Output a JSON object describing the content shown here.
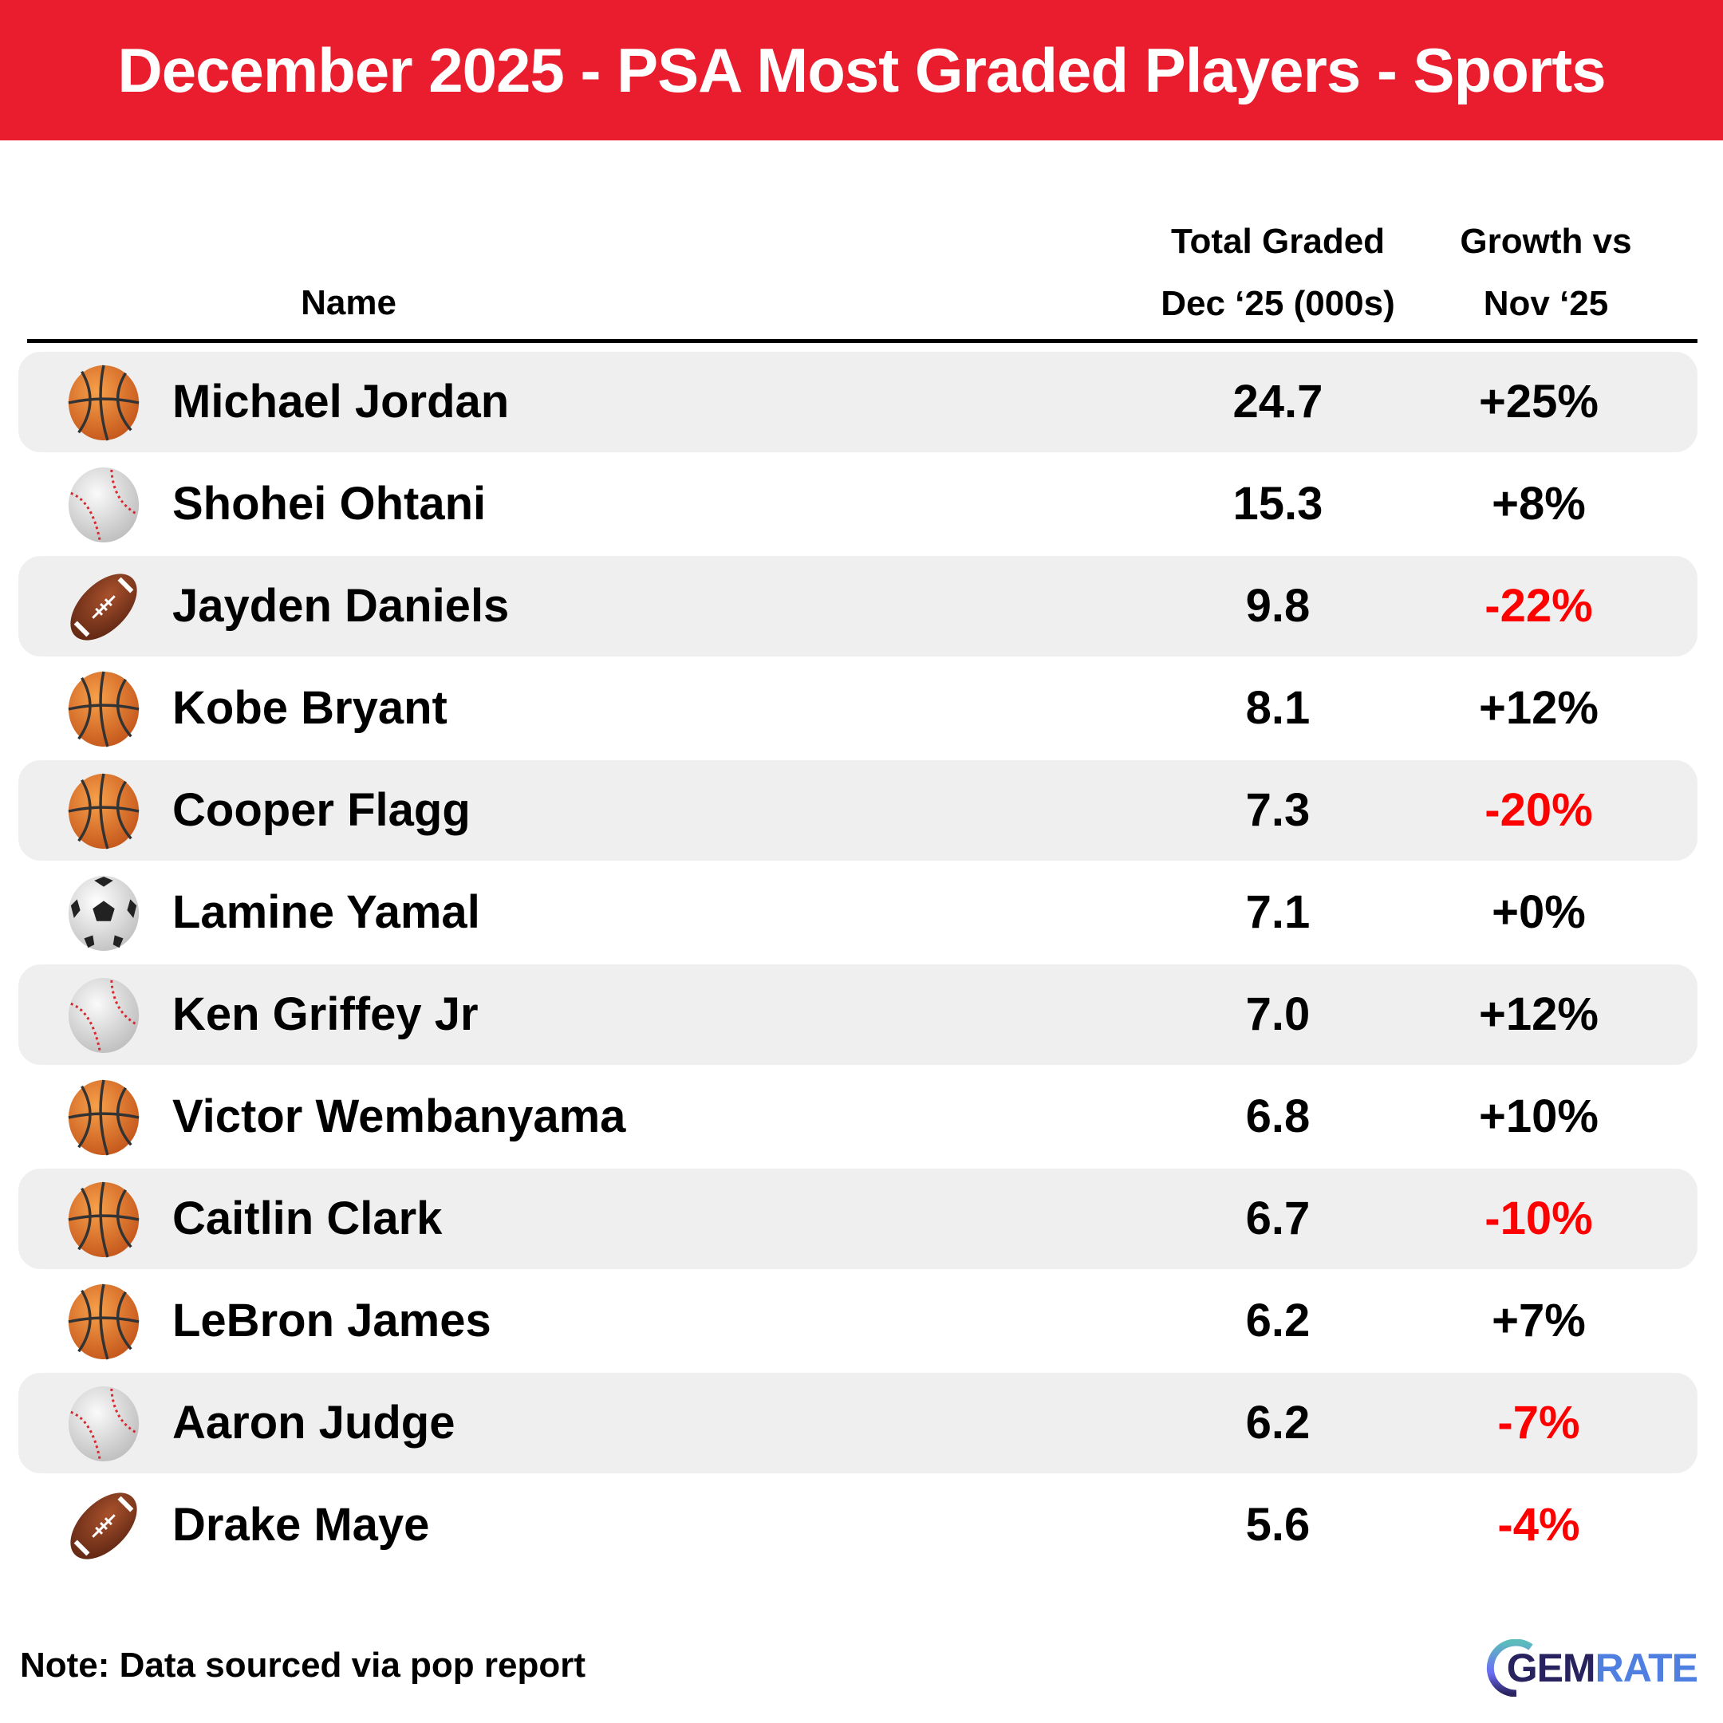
{
  "title": "December 2025 - PSA Most Graded Players - Sports",
  "columns": {
    "name": "Name",
    "total_line1": "Total Graded",
    "total_line2": "Dec ‘25 (000s)",
    "growth_line1": "Growth vs",
    "growth_line2": "Nov ‘25"
  },
  "colors": {
    "header": "#e91d2e",
    "negative": "#ff0000",
    "stripe": "#efefef"
  },
  "rows": [
    {
      "sport": "basketball",
      "name": "Michael Jordan",
      "total": "24.7",
      "growth": "+25%"
    },
    {
      "sport": "baseball",
      "name": "Shohei Ohtani",
      "total": "15.3",
      "growth": "+8%"
    },
    {
      "sport": "football",
      "name": "Jayden Daniels",
      "total": "9.8",
      "growth": "-22%"
    },
    {
      "sport": "basketball",
      "name": "Kobe Bryant",
      "total": "8.1",
      "growth": "+12%"
    },
    {
      "sport": "basketball",
      "name": "Cooper Flagg",
      "total": "7.3",
      "growth": "-20%"
    },
    {
      "sport": "soccer",
      "name": "Lamine Yamal",
      "total": "7.1",
      "growth": "+0%"
    },
    {
      "sport": "baseball",
      "name": "Ken Griffey Jr",
      "total": "7.0",
      "growth": "+12%"
    },
    {
      "sport": "basketball",
      "name": "Victor Wembanyama",
      "total": "6.8",
      "growth": "+10%"
    },
    {
      "sport": "basketball",
      "name": "Caitlin Clark",
      "total": "6.7",
      "growth": "-10%"
    },
    {
      "sport": "basketball",
      "name": "LeBron James",
      "total": "6.2",
      "growth": "+7%"
    },
    {
      "sport": "baseball",
      "name": "Aaron Judge",
      "total": "6.2",
      "growth": "-7%"
    },
    {
      "sport": "football",
      "name": "Drake Maye",
      "total": "5.6",
      "growth": "-4%"
    }
  ],
  "footer": {
    "note": "Note: Data sourced via pop report",
    "logo_gem": "GEM",
    "logo_rate": "RATE"
  }
}
